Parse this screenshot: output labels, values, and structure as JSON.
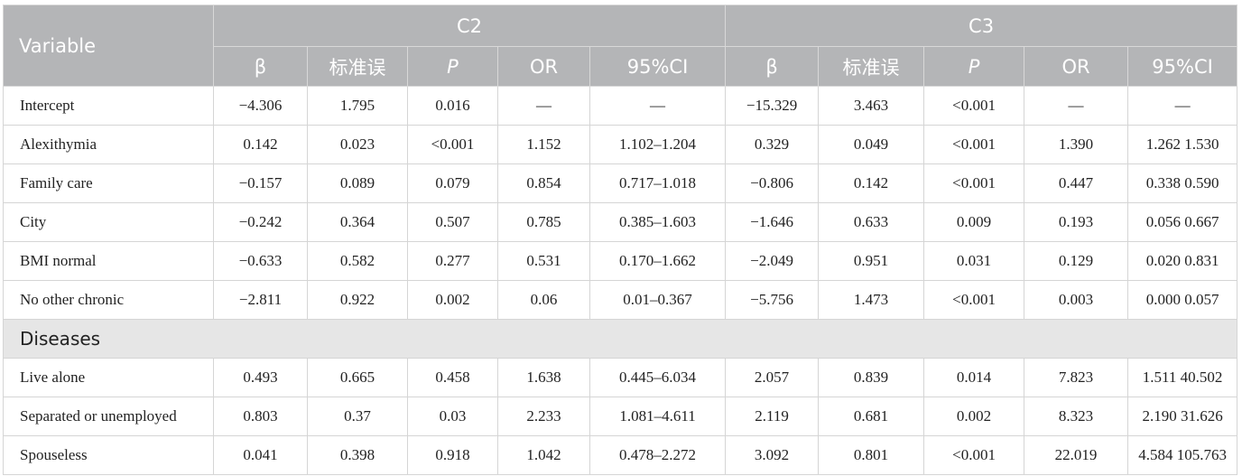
{
  "header": {
    "variable": "Variable",
    "group_c2": "C2",
    "group_c3": "C3",
    "columns": [
      "β",
      "标准误",
      "P",
      "OR",
      "95%CI"
    ]
  },
  "rows": [
    {
      "label": "Intercept",
      "c2": [
        "−4.306",
        "1.795",
        "0.016",
        "—",
        "—"
      ],
      "c3": [
        "−15.329",
        "3.463",
        "<0.001",
        "—",
        "—"
      ]
    },
    {
      "label": "Alexithymia",
      "c2": [
        "0.142",
        "0.023",
        "<0.001",
        "1.152",
        "1.102–1.204"
      ],
      "c3": [
        "0.329",
        "0.049",
        "<0.001",
        "1.390",
        "1.262 1.530"
      ]
    },
    {
      "label": "Family care",
      "c2": [
        "−0.157",
        "0.089",
        "0.079",
        "0.854",
        "0.717–1.018"
      ],
      "c3": [
        "−0.806",
        "0.142",
        "<0.001",
        "0.447",
        "0.338 0.590"
      ]
    },
    {
      "label": "City",
      "c2": [
        "−0.242",
        "0.364",
        "0.507",
        "0.785",
        "0.385–1.603"
      ],
      "c3": [
        "−1.646",
        "0.633",
        "0.009",
        "0.193",
        "0.056 0.667"
      ]
    },
    {
      "label": "BMI normal",
      "c2": [
        "−0.633",
        "0.582",
        "0.277",
        "0.531",
        "0.170–1.662"
      ],
      "c3": [
        "−2.049",
        "0.951",
        "0.031",
        "0.129",
        "0.020 0.831"
      ]
    },
    {
      "label": "No other chronic",
      "c2": [
        "−2.811",
        "0.922",
        "0.002",
        "0.06",
        "0.01–0.367"
      ],
      "c3": [
        "−5.756",
        "1.473",
        "<0.001",
        "0.003",
        "0.000 0.057"
      ]
    },
    {
      "section": "Diseases"
    },
    {
      "label": "Live alone",
      "c2": [
        "0.493",
        "0.665",
        "0.458",
        "1.638",
        "0.445–6.034"
      ],
      "c3": [
        "2.057",
        "0.839",
        "0.014",
        "7.823",
        "1.511 40.502"
      ]
    },
    {
      "label": "Separated or unemployed",
      "c2": [
        "0.803",
        "0.37",
        "0.03",
        "2.233",
        "1.081–4.611"
      ],
      "c3": [
        "2.119",
        "0.681",
        "0.002",
        "8.323",
        "2.190 31.626"
      ]
    },
    {
      "label": "Spouseless",
      "c2": [
        "0.041",
        "0.398",
        "0.918",
        "1.042",
        "0.478–2.272"
      ],
      "c3": [
        "3.092",
        "0.801",
        "<0.001",
        "22.019",
        "4.584 105.763"
      ]
    }
  ]
}
